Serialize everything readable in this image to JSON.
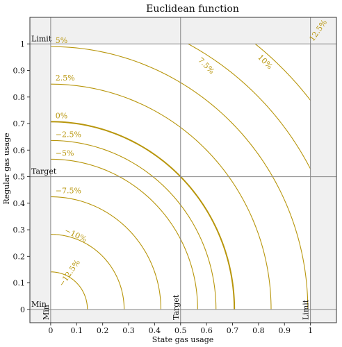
{
  "chart_data": {
    "type": "line",
    "title": "Euclidean function",
    "xlabel": "State gas usage",
    "ylabel": "Regular gas usage",
    "xlim": [
      -0.08,
      1.1
    ],
    "ylim": [
      -0.05,
      1.1
    ],
    "x_ticks": [
      "0",
      "0.1",
      "0.2",
      "0.3",
      "0.4",
      "0.5",
      "0.6",
      "0.7",
      "0.8",
      "0.9",
      "1"
    ],
    "y_ticks": [
      "0",
      "0.1",
      "0.2",
      "0.3",
      "0.4",
      "0.5",
      "0.6",
      "0.7",
      "0.8",
      "0.9",
      "1"
    ],
    "grid": false,
    "reference_lines": {
      "x": [
        {
          "label": "Min",
          "value": 0
        },
        {
          "label": "Target",
          "value": 0.5
        },
        {
          "label": "Limit",
          "value": 1
        }
      ],
      "y": [
        {
          "label": "Min",
          "value": 0
        },
        {
          "label": "Target",
          "value": 0.5
        },
        {
          "label": "Limit",
          "value": 1
        }
      ]
    },
    "contour_center": [
      0,
      0
    ],
    "contours": [
      {
        "label": "−12.5%",
        "radius": 0.1414
      },
      {
        "label": "−10%",
        "radius": 0.2828
      },
      {
        "label": "−7.5%",
        "radius": 0.4243
      },
      {
        "label": "−5%",
        "radius": 0.5657
      },
      {
        "label": "−2.5%",
        "radius": 0.6364
      },
      {
        "label": "0%",
        "radius": 0.7071,
        "highlight": true
      },
      {
        "label": "2.5%",
        "radius": 0.8485
      },
      {
        "label": "5%",
        "radius": 0.9899
      },
      {
        "label": "7.5%",
        "radius": 1.1314
      },
      {
        "label": "10%",
        "radius": 1.2728
      },
      {
        "label": "12.5%",
        "radius": 1.4142
      }
    ],
    "colors": {
      "contour": "#b8960c",
      "reference": "#888888",
      "shade": "#f0f0f0"
    }
  }
}
